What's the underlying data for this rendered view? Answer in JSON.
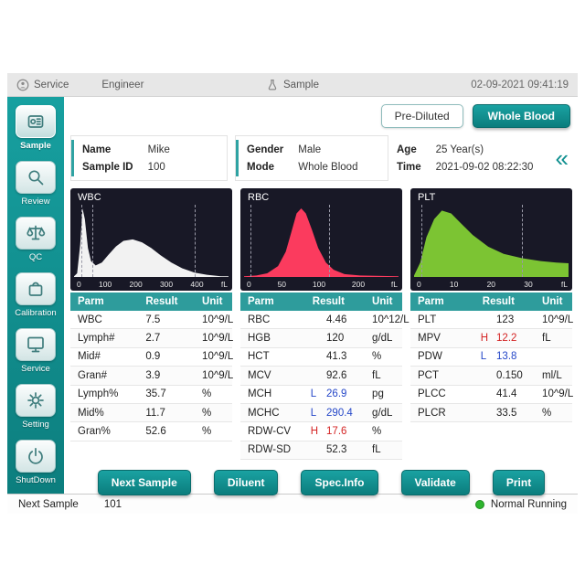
{
  "topbar": {
    "service": "Service",
    "engineer": "Engineer",
    "sample": "Sample",
    "datetime": "02-09-2021 09:41:19"
  },
  "sidebar": {
    "items": [
      {
        "id": "sample",
        "label": "Sample",
        "active": true
      },
      {
        "id": "review",
        "label": "Review",
        "active": false
      },
      {
        "id": "qc",
        "label": "QC",
        "active": false
      },
      {
        "id": "calibration",
        "label": "Calibration",
        "active": false
      },
      {
        "id": "service",
        "label": "Service",
        "active": false
      },
      {
        "id": "setting",
        "label": "Setting",
        "active": false
      },
      {
        "id": "shutdown",
        "label": "ShutDown",
        "active": false
      }
    ]
  },
  "mode": {
    "prediluted": "Pre-Diluted",
    "whole_blood": "Whole Blood"
  },
  "patient": {
    "name_label": "Name",
    "name": "Mike",
    "sample_id_label": "Sample ID",
    "sample_id": "100",
    "gender_label": "Gender",
    "gender": "Male",
    "mode_label": "Mode",
    "mode": "Whole Blood",
    "age_label": "Age",
    "age": "25 Year(s)",
    "time_label": "Time",
    "time": "2021-09-02 08:22:30"
  },
  "collapse_icon": "«",
  "histograms": [
    {
      "title": "WBC",
      "unit": "fL",
      "ticks": [
        "0",
        "100",
        "200",
        "300",
        "400"
      ],
      "color": "#f2f2f2",
      "markers": [
        0.045,
        0.12,
        0.78
      ],
      "points": [
        [
          0,
          0.01
        ],
        [
          0.02,
          0.05
        ],
        [
          0.04,
          0.45
        ],
        [
          0.055,
          0.95
        ],
        [
          0.07,
          0.8
        ],
        [
          0.09,
          0.4
        ],
        [
          0.11,
          0.22
        ],
        [
          0.14,
          0.16
        ],
        [
          0.18,
          0.2
        ],
        [
          0.22,
          0.3
        ],
        [
          0.27,
          0.42
        ],
        [
          0.32,
          0.5
        ],
        [
          0.38,
          0.52
        ],
        [
          0.44,
          0.48
        ],
        [
          0.5,
          0.4
        ],
        [
          0.56,
          0.3
        ],
        [
          0.63,
          0.2
        ],
        [
          0.7,
          0.12
        ],
        [
          0.78,
          0.06
        ],
        [
          0.86,
          0.03
        ],
        [
          0.95,
          0.01
        ],
        [
          1,
          0.01
        ]
      ]
    },
    {
      "title": "RBC",
      "unit": "fL",
      "ticks": [
        "0",
        "50",
        "100",
        "200"
      ],
      "color": "#fb3b5e",
      "markers": [
        0.04,
        0.55
      ],
      "points": [
        [
          0,
          0.01
        ],
        [
          0.08,
          0.02
        ],
        [
          0.15,
          0.05
        ],
        [
          0.22,
          0.15
        ],
        [
          0.27,
          0.35
        ],
        [
          0.31,
          0.65
        ],
        [
          0.34,
          0.88
        ],
        [
          0.37,
          0.95
        ],
        [
          0.4,
          0.88
        ],
        [
          0.44,
          0.65
        ],
        [
          0.48,
          0.4
        ],
        [
          0.53,
          0.2
        ],
        [
          0.58,
          0.1
        ],
        [
          0.65,
          0.04
        ],
        [
          0.75,
          0.02
        ],
        [
          1,
          0.01
        ]
      ]
    },
    {
      "title": "PLT",
      "unit": "fL",
      "ticks": [
        "0",
        "10",
        "20",
        "30"
      ],
      "color": "#7cc433",
      "markers": [
        0.05,
        0.7
      ],
      "points": [
        [
          0,
          0.02
        ],
        [
          0.04,
          0.2
        ],
        [
          0.08,
          0.55
        ],
        [
          0.13,
          0.8
        ],
        [
          0.18,
          0.92
        ],
        [
          0.24,
          0.88
        ],
        [
          0.3,
          0.75
        ],
        [
          0.38,
          0.58
        ],
        [
          0.48,
          0.42
        ],
        [
          0.58,
          0.32
        ],
        [
          0.7,
          0.26
        ],
        [
          0.82,
          0.22
        ],
        [
          0.92,
          0.2
        ],
        [
          1,
          0.19
        ]
      ]
    }
  ],
  "tables": [
    {
      "id": "wbc",
      "has_flags": false,
      "headers": [
        "Parm",
        "Result",
        "Unit"
      ],
      "rows": [
        {
          "parm": "WBC",
          "flag": "",
          "result": "7.5",
          "unit": "10^9/L"
        },
        {
          "parm": "Lymph#",
          "flag": "",
          "result": "2.7",
          "unit": "10^9/L"
        },
        {
          "parm": "Mid#",
          "flag": "",
          "result": "0.9",
          "unit": "10^9/L"
        },
        {
          "parm": "Gran#",
          "flag": "",
          "result": "3.9",
          "unit": "10^9/L"
        },
        {
          "parm": "Lymph%",
          "flag": "",
          "result": "35.7",
          "unit": "%"
        },
        {
          "parm": "Mid%",
          "flag": "",
          "result": "11.7",
          "unit": "%"
        },
        {
          "parm": "Gran%",
          "flag": "",
          "result": "52.6",
          "unit": "%"
        }
      ]
    },
    {
      "id": "rbc",
      "has_flags": true,
      "headers": [
        "Parm",
        "Result",
        "Unit"
      ],
      "rows": [
        {
          "parm": "RBC",
          "flag": "",
          "result": "4.46",
          "unit": "10^12/L"
        },
        {
          "parm": "HGB",
          "flag": "",
          "result": "120",
          "unit": "g/dL"
        },
        {
          "parm": "HCT",
          "flag": "",
          "result": "41.3",
          "unit": "%"
        },
        {
          "parm": "MCV",
          "flag": "",
          "result": "92.6",
          "unit": "fL"
        },
        {
          "parm": "MCH",
          "flag": "L",
          "result": "26.9",
          "unit": "pg"
        },
        {
          "parm": "MCHC",
          "flag": "L",
          "result": "290.4",
          "unit": "g/dL"
        },
        {
          "parm": "RDW-CV",
          "flag": "H",
          "result": "17.6",
          "unit": "%"
        },
        {
          "parm": "RDW-SD",
          "flag": "",
          "result": "52.3",
          "unit": "fL"
        }
      ]
    },
    {
      "id": "plt",
      "has_flags": true,
      "headers": [
        "Parm",
        "Result",
        "Unit"
      ],
      "rows": [
        {
          "parm": "PLT",
          "flag": "",
          "result": "123",
          "unit": "10^9/L"
        },
        {
          "parm": "MPV",
          "flag": "H",
          "result": "12.2",
          "unit": "fL"
        },
        {
          "parm": "PDW",
          "flag": "L",
          "result": "13.8",
          "unit": ""
        },
        {
          "parm": "PCT",
          "flag": "",
          "result": "0.150",
          "unit": "ml/L"
        },
        {
          "parm": "PLCC",
          "flag": "",
          "result": "41.4",
          "unit": "10^9/L"
        },
        {
          "parm": "PLCR",
          "flag": "",
          "result": "33.5",
          "unit": "%"
        }
      ]
    }
  ],
  "actions": [
    {
      "id": "next-sample",
      "label": "Next Sample"
    },
    {
      "id": "diluent",
      "label": "Diluent"
    },
    {
      "id": "spec-info",
      "label": "Spec.Info"
    },
    {
      "id": "validate",
      "label": "Validate"
    },
    {
      "id": "print",
      "label": "Print"
    }
  ],
  "status": {
    "next_sample_label": "Next Sample",
    "next_sample_value": "101",
    "running": "Normal Running",
    "dot_color": "#2eb52e"
  },
  "colors": {
    "teal_primary": "#0e8f8f",
    "table_header": "#2e9c9c",
    "histogram_bg": "#181826",
    "flag_high": "#d42424",
    "flag_low": "#2547c8"
  }
}
